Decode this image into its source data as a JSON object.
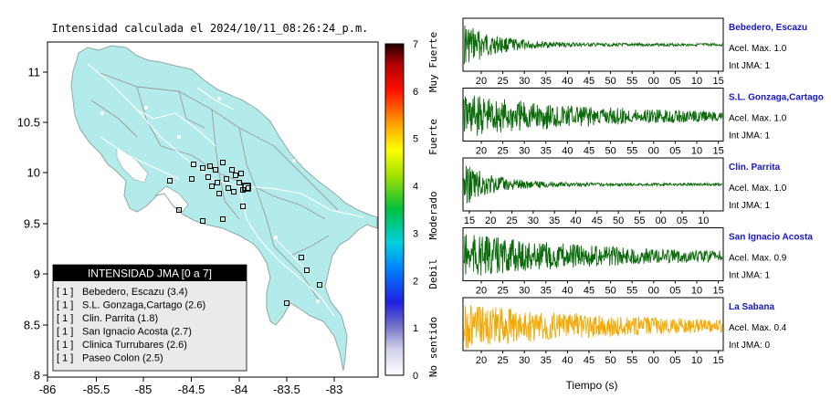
{
  "map": {
    "title": "Intensidad calculada el 2024/10/11_08:26:24_p.m.",
    "x_ticks": [
      "-86",
      "-85.5",
      "-85",
      "-84.5",
      "-84",
      "-83.5",
      "-83"
    ],
    "y_ticks": [
      "11",
      "10.5",
      "10",
      "9.5",
      "9",
      "8.5",
      "8"
    ],
    "legend": {
      "title": "INTENSIDAD JMA [0 a 7]",
      "items": [
        {
          "marker": "[ 1 ]",
          "label": "Bebedero, Escazu (3.4)"
        },
        {
          "marker": "[ 1 ]",
          "label": "S.L. Gonzaga,Cartago (2.6)"
        },
        {
          "marker": "[ 1 ]",
          "label": "Clin. Parrita (1.8)"
        },
        {
          "marker": "[ 1 ]",
          "label": "San Ignacio Acosta (2.7)"
        },
        {
          "marker": "[ 1 ]",
          "label": "Clinica Turrubares (2.6)"
        },
        {
          "marker": "[ 1 ]",
          "label": "Paseo Colon (2.5)"
        }
      ]
    },
    "land_color": "#b3eaea"
  },
  "colorbar": {
    "ticks": [
      "7",
      "6",
      "5",
      "4",
      "3",
      "2",
      "1",
      "0"
    ],
    "labels": [
      "Muy Fuerte",
      "Fuerte",
      "Moderado",
      "Debil",
      "No sentido"
    ],
    "scale": [
      0,
      7
    ]
  },
  "chart_data": {
    "type": "line",
    "xlabel": "Tiempo (s)",
    "panels": [
      {
        "name": "Bebedero, Escazu",
        "accel": "Acel. Max. 1.0",
        "jma": "Int JMA: 1",
        "color": "#0b6b0b",
        "ticks": [
          "20",
          "25",
          "30",
          "35",
          "40",
          "45",
          "50",
          "55",
          "00",
          "05",
          "10",
          "15"
        ],
        "tick_start": 20,
        "onset": 0.0,
        "decay": 0.13
      },
      {
        "name": "S.L. Gonzaga,Cartago",
        "accel": "Acel. Max. 1.0",
        "jma": "Int JMA: 1",
        "color": "#0b6b0b",
        "ticks": [
          "20",
          "25",
          "30",
          "35",
          "40",
          "45",
          "50",
          "55",
          "00",
          "05",
          "10",
          "15"
        ],
        "tick_start": 20,
        "onset": 0.0,
        "decay": 0.55
      },
      {
        "name": "Clin. Parrita",
        "accel": "Acel. Max. 1.0",
        "jma": "Int JMA: 1",
        "color": "#0b6b0b",
        "ticks": [
          "15",
          "20",
          "25",
          "30",
          "35",
          "40",
          "45",
          "50",
          "55",
          "00",
          "05",
          "10"
        ],
        "tick_start": 15,
        "onset": 0.0,
        "decay": 0.12
      },
      {
        "name": "San Ignacio Acosta",
        "accel": "Acel. Max. 0.9",
        "jma": "Int JMA: 1",
        "color": "#0b6b0b",
        "ticks": [
          "20",
          "25",
          "30",
          "35",
          "40",
          "45",
          "50",
          "55",
          "00",
          "05",
          "10",
          "15"
        ],
        "tick_start": 20,
        "onset": 0.0,
        "decay": 0.6
      },
      {
        "name": "La Sabana",
        "accel": "Acel. Max. 0.4",
        "jma": "Int JMA: 0",
        "color": "#f5a800",
        "ticks": [
          "20",
          "25",
          "30",
          "35",
          "40",
          "45",
          "50",
          "55",
          "00",
          "05",
          "10",
          "15"
        ],
        "tick_start": 20,
        "onset": 0.0,
        "decay": 0.7
      }
    ]
  }
}
